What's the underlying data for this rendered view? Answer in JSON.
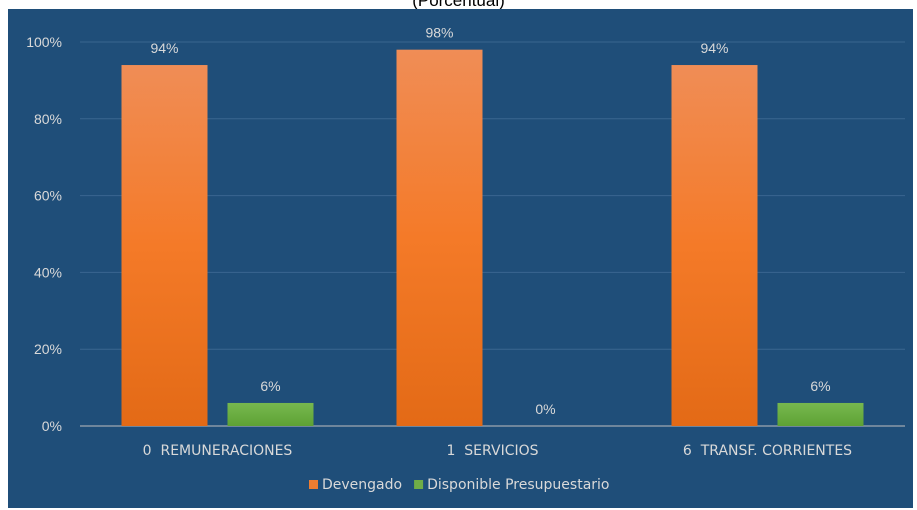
{
  "chart_data": {
    "type": "bar",
    "subtitle": "(Porcentual)",
    "categories": [
      "0  REMUNERACIONES",
      "1  SERVICIOS",
      "6  TRANSF. CORRIENTES"
    ],
    "series": [
      {
        "name": "Devengado",
        "values": [
          94,
          98,
          94
        ],
        "labels": [
          "94%",
          "98%",
          "94%"
        ],
        "color": "#ed7d31"
      },
      {
        "name": "Disponible Presupuestario",
        "values": [
          6,
          0,
          6
        ],
        "labels": [
          "6%",
          "0%",
          "6%"
        ],
        "color": "#70ad47"
      }
    ],
    "ylim": [
      0,
      100
    ],
    "yticks": [
      "0%",
      "20%",
      "40%",
      "60%",
      "80%",
      "100%"
    ],
    "grid": true,
    "legend_position": "bottom",
    "background_color": "#1f4e79",
    "text_color": "#d9d9d9"
  }
}
